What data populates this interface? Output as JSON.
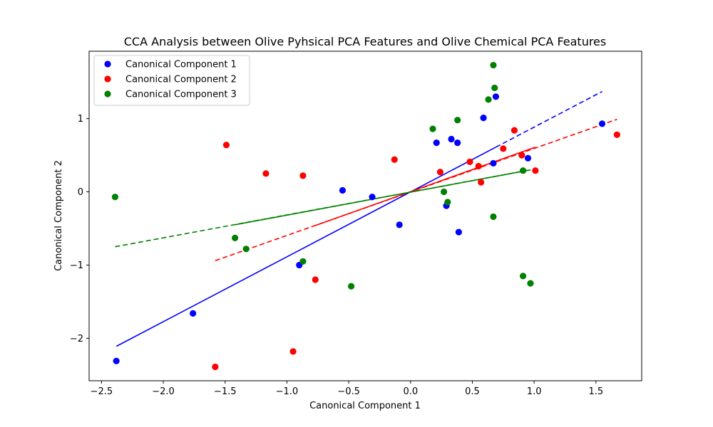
{
  "chart_data": {
    "type": "scatter",
    "title": "CCA Analysis between Olive Pyhsical PCA Features and Olive Chemical PCA Features",
    "xlabel": "Canonical Component 1",
    "ylabel": "Canonical Component 2",
    "xlim": [
      -2.6,
      1.87
    ],
    "ylim": [
      -2.58,
      1.92
    ],
    "xticks": [
      -2.5,
      -2.0,
      -1.5,
      -1.0,
      -0.5,
      0.0,
      0.5,
      1.0,
      1.5
    ],
    "xtick_labels": [
      "−2.5",
      "−2.0",
      "−1.5",
      "−1.0",
      "−0.5",
      "0.0",
      "0.5",
      "1.0",
      "1.5"
    ],
    "yticks": [
      -2,
      -1,
      0,
      1
    ],
    "ytick_labels": [
      "−2",
      "−1",
      "0",
      "1"
    ],
    "grid": false,
    "legend_position": "top-left",
    "series": [
      {
        "name": "Canonical Component 1",
        "color": "#0000ff",
        "points": [
          [
            -2.38,
            -2.31
          ],
          [
            -1.76,
            -1.66
          ],
          [
            -0.9,
            -1.0
          ],
          [
            -0.55,
            0.02
          ],
          [
            -0.31,
            -0.07
          ],
          [
            -0.09,
            -0.45
          ],
          [
            0.21,
            0.67
          ],
          [
            0.29,
            -0.19
          ],
          [
            0.33,
            0.72
          ],
          [
            0.38,
            0.67
          ],
          [
            0.39,
            -0.55
          ],
          [
            0.59,
            1.01
          ],
          [
            0.67,
            0.39
          ],
          [
            0.69,
            1.3
          ],
          [
            0.95,
            0.46
          ],
          [
            1.55,
            0.93
          ]
        ],
        "fit_solid": [
          [
            -2.38,
            -2.11
          ],
          [
            0.69,
            0.61
          ]
        ],
        "fit_dashed": [
          [
            0.69,
            0.61
          ],
          [
            1.55,
            1.37
          ]
        ]
      },
      {
        "name": "Canonical Component 2",
        "color": "#ff0000",
        "points": [
          [
            -1.58,
            -2.39
          ],
          [
            -1.49,
            0.64
          ],
          [
            -1.17,
            0.25
          ],
          [
            -0.95,
            -2.18
          ],
          [
            -0.87,
            0.22
          ],
          [
            -0.77,
            -1.2
          ],
          [
            -0.13,
            0.44
          ],
          [
            0.24,
            0.27
          ],
          [
            0.48,
            0.41
          ],
          [
            0.55,
            0.35
          ],
          [
            0.57,
            0.13
          ],
          [
            0.75,
            0.59
          ],
          [
            0.84,
            0.84
          ],
          [
            0.9,
            0.5
          ],
          [
            1.01,
            0.29
          ],
          [
            1.67,
            0.78
          ]
        ],
        "fit_solid": [
          [
            -0.77,
            -0.46
          ],
          [
            1.01,
            0.61
          ]
        ],
        "fit_dashed": [
          [
            -1.58,
            -0.94
          ],
          [
            1.67,
            0.99
          ]
        ]
      },
      {
        "name": "Canonical Component 3",
        "color": "#008000",
        "points": [
          [
            -2.39,
            -0.07
          ],
          [
            -1.42,
            -0.63
          ],
          [
            -1.33,
            -0.78
          ],
          [
            -0.87,
            -0.95
          ],
          [
            -0.48,
            -1.29
          ],
          [
            0.18,
            0.86
          ],
          [
            0.27,
            0.0
          ],
          [
            0.3,
            -0.14
          ],
          [
            0.38,
            0.98
          ],
          [
            0.63,
            1.26
          ],
          [
            0.67,
            1.73
          ],
          [
            0.67,
            -0.34
          ],
          [
            0.68,
            1.42
          ],
          [
            0.91,
            -1.15
          ],
          [
            0.91,
            0.29
          ],
          [
            0.97,
            -1.25
          ]
        ],
        "fit_solid": [
          [
            -1.42,
            -0.45
          ],
          [
            0.97,
            0.3
          ]
        ],
        "fit_dashed": [
          [
            -2.39,
            -0.75
          ],
          [
            0.97,
            0.3
          ]
        ]
      }
    ]
  }
}
